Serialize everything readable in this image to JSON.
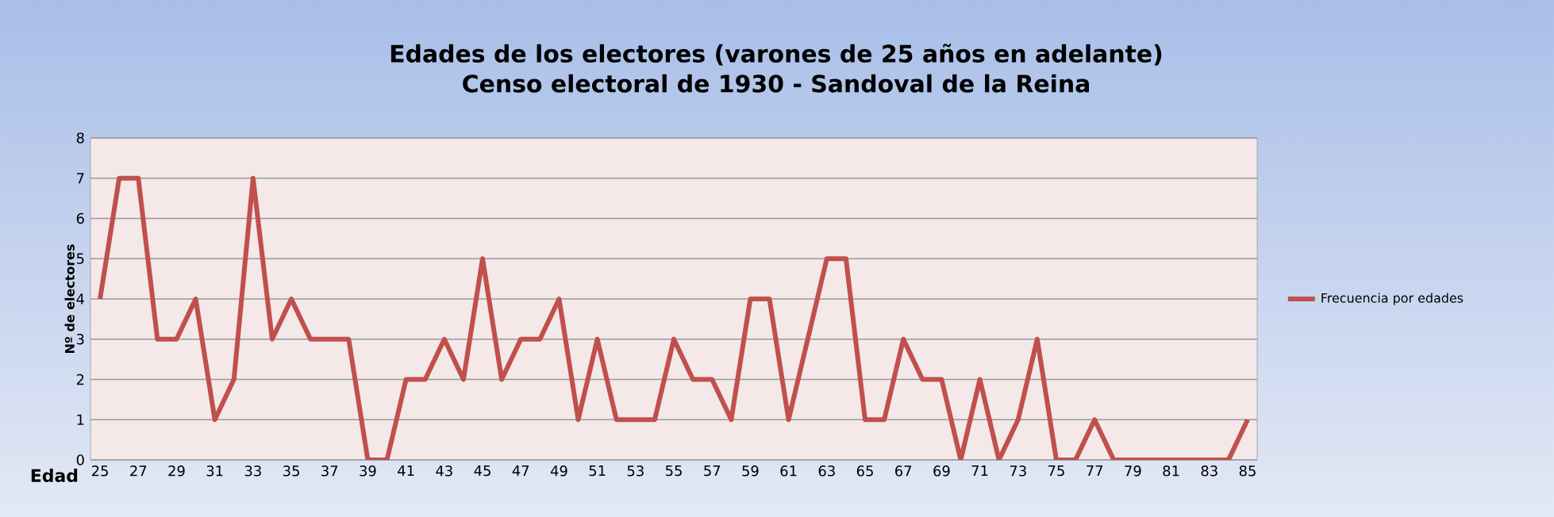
{
  "chart_data": {
    "type": "line",
    "title": "Edades de los electores (varones de 25 años en adelante)",
    "subtitle": "Censo electoral de 1930 - Sandoval de la Reina",
    "xlabel": "Edad",
    "ylabel": "Nº de electores",
    "categories": [
      "25",
      null,
      "27",
      null,
      "29",
      null,
      "31",
      null,
      "33",
      null,
      "35",
      null,
      "37",
      null,
      "39",
      null,
      "41",
      null,
      "43",
      null,
      "45",
      null,
      "47",
      null,
      "49",
      null,
      "51",
      null,
      "53",
      null,
      "55",
      null,
      "57",
      null,
      "59",
      null,
      "61",
      null,
      "63",
      null,
      "65",
      null,
      "67",
      null,
      "69",
      null,
      "71",
      null,
      "73",
      null,
      "75",
      null,
      "77",
      null,
      "79",
      null,
      "81",
      null,
      "83",
      null,
      "85"
    ],
    "series": [
      {
        "name": "Frecuencia por edades",
        "color": "#c0504d",
        "values": [
          4,
          7,
          7,
          3,
          3,
          4,
          1,
          2,
          7,
          3,
          4,
          3,
          3,
          3,
          0,
          0,
          2,
          2,
          3,
          2,
          5,
          2,
          3,
          3,
          4,
          1,
          3,
          1,
          1,
          1,
          3,
          2,
          2,
          1,
          4,
          4,
          1,
          3,
          5,
          5,
          1,
          1,
          3,
          2,
          2,
          0,
          2,
          0,
          1,
          3,
          0,
          0,
          1,
          0,
          0,
          0,
          0,
          0,
          0,
          0,
          1
        ]
      }
    ],
    "ylim": [
      0,
      8
    ],
    "yticks": [
      0,
      1,
      2,
      3,
      4,
      5,
      6,
      7,
      8
    ],
    "grid": "y",
    "legend": "right",
    "marker": "none",
    "line_style": "solid"
  }
}
